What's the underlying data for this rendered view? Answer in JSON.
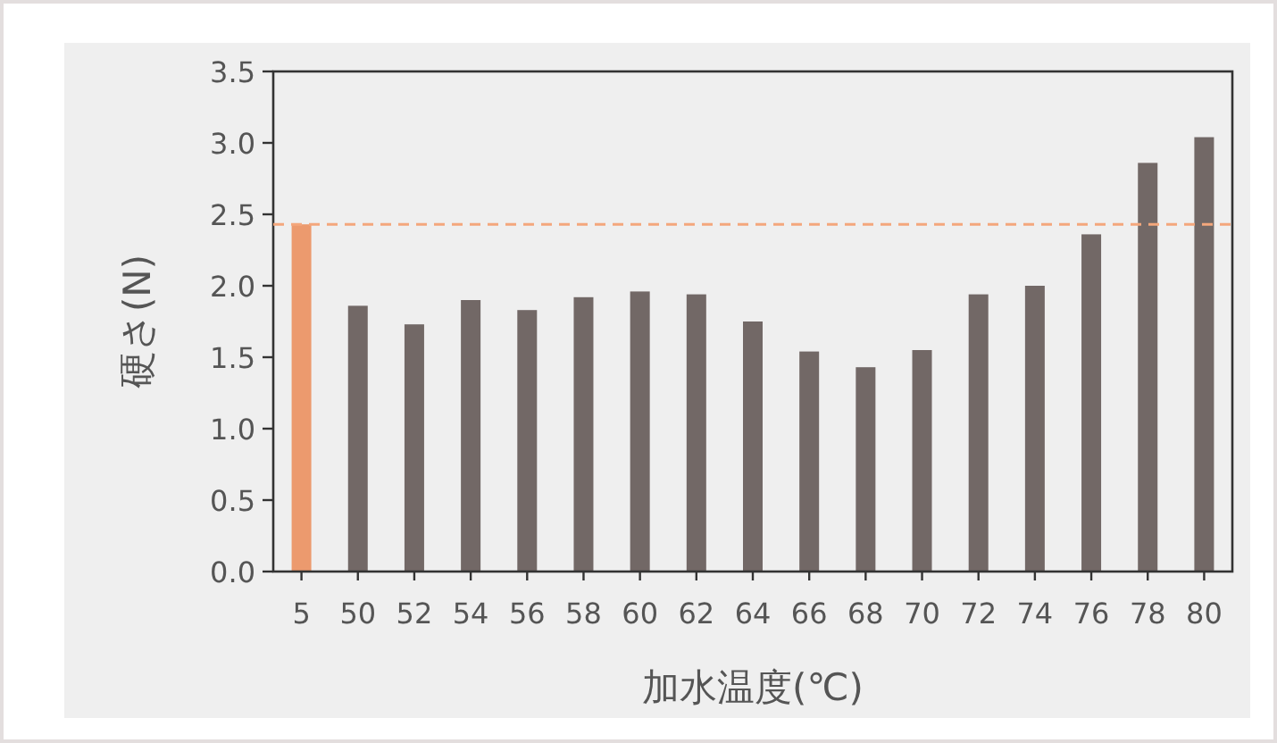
{
  "chart_data": {
    "type": "bar",
    "xlabel": "加水温度(℃)",
    "ylabel": "硬さ(N)",
    "categories": [
      "5",
      "50",
      "52",
      "54",
      "56",
      "58",
      "60",
      "62",
      "64",
      "66",
      "68",
      "70",
      "72",
      "74",
      "76",
      "78",
      "80"
    ],
    "values": [
      2.43,
      1.86,
      1.73,
      1.9,
      1.83,
      1.92,
      1.96,
      1.94,
      1.75,
      1.54,
      1.43,
      1.55,
      1.94,
      2.0,
      2.36,
      2.86,
      3.04
    ],
    "colors": [
      "#ec9a6e",
      "#726866",
      "#726866",
      "#726866",
      "#726866",
      "#726866",
      "#726866",
      "#726866",
      "#726866",
      "#726866",
      "#726866",
      "#726866",
      "#726866",
      "#726866",
      "#726866",
      "#726866",
      "#726866"
    ],
    "ylim": [
      0,
      3.5
    ],
    "yticks": [
      {
        "value": 0,
        "label": "0.0"
      },
      {
        "value": 0.5,
        "label": "0.5"
      },
      {
        "value": 1,
        "label": "1.0"
      },
      {
        "value": 1.5,
        "label": "1.5"
      },
      {
        "value": 2,
        "label": "2.0"
      },
      {
        "value": 2.5,
        "label": "2.5"
      },
      {
        "value": 3,
        "label": "3.0"
      },
      {
        "value": 3.5,
        "label": "3.5"
      }
    ],
    "ref_lines": [
      {
        "axis": "y",
        "value": 2.43,
        "color": "#f4a77c",
        "line_style": "dashed"
      }
    ]
  }
}
